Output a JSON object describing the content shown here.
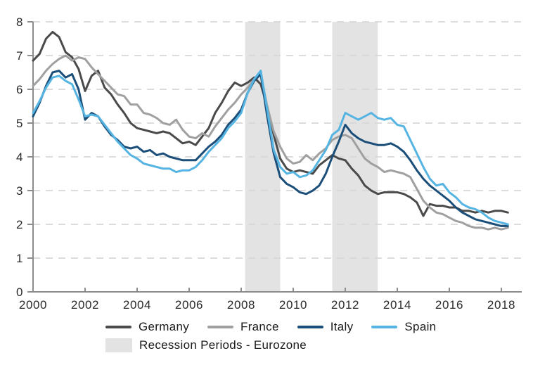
{
  "chart_data": {
    "type": "line",
    "title": "",
    "xlabel": "",
    "ylabel": "",
    "grid": "horizontal-dashed",
    "legend_position": "bottom",
    "x_axis": {
      "ticks": [
        2000,
        2002,
        2004,
        2006,
        2008,
        2010,
        2012,
        2014,
        2016,
        2018
      ],
      "range": [
        2000,
        2018.8
      ]
    },
    "y_axis": {
      "ticks": [
        0,
        1,
        2,
        3,
        4,
        5,
        6,
        7,
        8
      ],
      "range": [
        0,
        8
      ]
    },
    "x": [
      2000,
      2000.25,
      2000.5,
      2000.75,
      2001,
      2001.25,
      2001.5,
      2001.75,
      2002,
      2002.25,
      2002.5,
      2002.75,
      2003,
      2003.25,
      2003.5,
      2003.75,
      2004,
      2004.25,
      2004.5,
      2004.75,
      2005,
      2005.25,
      2005.5,
      2005.75,
      2006,
      2006.25,
      2006.5,
      2006.75,
      2007,
      2007.25,
      2007.5,
      2007.75,
      2008,
      2008.25,
      2008.5,
      2008.75,
      2009,
      2009.25,
      2009.5,
      2009.75,
      2010,
      2010.25,
      2010.5,
      2010.75,
      2011,
      2011.25,
      2011.5,
      2011.75,
      2012,
      2012.25,
      2012.5,
      2012.75,
      2013,
      2013.25,
      2013.5,
      2013.75,
      2014,
      2014.25,
      2014.5,
      2014.75,
      2015,
      2015.25,
      2015.5,
      2015.75,
      2016,
      2016.25,
      2016.5,
      2016.75,
      2017,
      2017.25,
      2017.5,
      2017.75,
      2018,
      2018.25
    ],
    "series": [
      {
        "name": "Germany",
        "color": "#4a4a4a",
        "values": [
          6.85,
          7.05,
          7.5,
          7.7,
          7.55,
          7.1,
          6.95,
          6.6,
          5.95,
          6.4,
          6.55,
          6.05,
          5.85,
          5.55,
          5.3,
          5.0,
          4.85,
          4.8,
          4.75,
          4.7,
          4.75,
          4.7,
          4.55,
          4.4,
          4.45,
          4.35,
          4.6,
          4.85,
          5.3,
          5.6,
          5.95,
          6.2,
          6.1,
          6.2,
          6.35,
          6.15,
          5.5,
          4.65,
          3.95,
          3.65,
          3.55,
          3.6,
          3.55,
          3.5,
          3.75,
          3.9,
          4.05,
          3.95,
          3.9,
          3.65,
          3.45,
          3.15,
          3.0,
          2.9,
          2.95,
          2.95,
          2.95,
          2.9,
          2.8,
          2.65,
          2.25,
          2.6,
          2.55,
          2.55,
          2.5,
          2.5,
          2.4,
          2.4,
          2.35,
          2.4,
          2.35,
          2.4,
          2.4,
          2.35
        ]
      },
      {
        "name": "France",
        "color": "#a0a0a0",
        "values": [
          6.1,
          6.3,
          6.55,
          6.75,
          6.9,
          7.0,
          6.85,
          6.95,
          6.9,
          6.65,
          6.45,
          6.25,
          6.05,
          5.85,
          5.8,
          5.55,
          5.55,
          5.3,
          5.25,
          5.15,
          5.0,
          4.95,
          5.1,
          4.8,
          4.6,
          4.55,
          4.7,
          4.6,
          4.9,
          5.15,
          5.4,
          5.6,
          5.85,
          6.05,
          6.3,
          6.45,
          5.5,
          4.75,
          4.3,
          3.95,
          3.8,
          3.85,
          4.05,
          3.9,
          4.1,
          4.25,
          4.5,
          4.6,
          4.65,
          4.55,
          4.25,
          3.95,
          3.8,
          3.7,
          3.55,
          3.6,
          3.55,
          3.5,
          3.4,
          3.05,
          2.7,
          2.5,
          2.35,
          2.3,
          2.2,
          2.1,
          2.05,
          1.95,
          1.9,
          1.9,
          1.85,
          1.9,
          1.85,
          1.9
        ]
      },
      {
        "name": "Italy",
        "color": "#1b4e79",
        "values": [
          5.2,
          5.6,
          6.1,
          6.5,
          6.55,
          6.35,
          6.45,
          6.0,
          5.1,
          5.3,
          5.2,
          4.9,
          4.65,
          4.5,
          4.3,
          4.25,
          4.3,
          4.15,
          4.2,
          4.05,
          4.1,
          4.0,
          3.95,
          3.9,
          3.9,
          3.9,
          4.1,
          4.3,
          4.45,
          4.65,
          4.95,
          5.15,
          5.4,
          5.9,
          6.25,
          6.45,
          5.2,
          4.1,
          3.4,
          3.2,
          3.1,
          2.95,
          2.9,
          3.0,
          3.15,
          3.5,
          4.0,
          4.45,
          4.95,
          4.7,
          4.55,
          4.45,
          4.4,
          4.35,
          4.35,
          4.4,
          4.3,
          4.15,
          3.9,
          3.6,
          3.35,
          3.15,
          3.0,
          2.85,
          2.7,
          2.5,
          2.35,
          2.25,
          2.15,
          2.1,
          2.05,
          2.0,
          1.95,
          1.95
        ]
      },
      {
        "name": "Spain",
        "color": "#56b4e2",
        "values": [
          5.3,
          5.65,
          6.05,
          6.35,
          6.4,
          6.25,
          6.15,
          5.7,
          5.2,
          5.25,
          5.2,
          4.95,
          4.7,
          4.45,
          4.25,
          4.05,
          3.95,
          3.8,
          3.75,
          3.7,
          3.65,
          3.65,
          3.55,
          3.6,
          3.6,
          3.7,
          3.9,
          4.15,
          4.35,
          4.55,
          4.85,
          5.05,
          5.3,
          5.9,
          6.3,
          6.55,
          5.4,
          4.2,
          3.7,
          3.5,
          3.55,
          3.4,
          3.45,
          3.6,
          3.9,
          4.2,
          4.65,
          4.8,
          5.3,
          5.2,
          5.1,
          5.2,
          5.3,
          5.15,
          5.1,
          5.15,
          4.95,
          4.9,
          4.5,
          4.1,
          3.7,
          3.35,
          3.15,
          3.2,
          2.95,
          2.8,
          2.6,
          2.5,
          2.45,
          2.35,
          2.2,
          2.1,
          2.05,
          2.0
        ]
      }
    ],
    "recession_bands": {
      "label": "Recession Periods - Eurozone",
      "color": "#e3e3e3",
      "periods": [
        [
          2008.15,
          2009.5
        ],
        [
          2011.5,
          2013.25
        ]
      ]
    }
  }
}
